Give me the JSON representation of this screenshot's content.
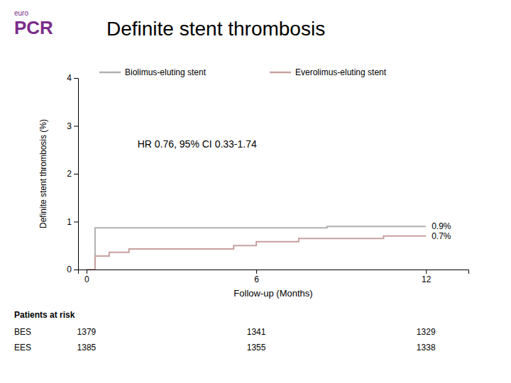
{
  "chart_data": {
    "type": "line",
    "title": "Definite stent thrombosis",
    "x_label": "Follow-up (Months)",
    "y_label": "Definite stent thrombosis (%)",
    "xlim": [
      -0.3,
      13.5
    ],
    "xticks": [
      0,
      6,
      12
    ],
    "ylim": [
      0,
      4
    ],
    "yticks": [
      0,
      1,
      2,
      3,
      4
    ],
    "grid": false,
    "legend": "top",
    "series": [
      {
        "name": "Biolimus-eluting stent",
        "color": "#b0b0b0",
        "x": [
          0,
          0.3,
          0.3,
          1.2,
          1.2,
          2.0,
          2.0,
          8.5,
          8.5,
          12.0
        ],
        "values": [
          0.0,
          0.0,
          0.87,
          0.87,
          0.87,
          0.87,
          0.87,
          0.87,
          0.9,
          0.9
        ]
      },
      {
        "name": "Everolimus-eluting stent",
        "color": "#c8a0a0",
        "x": [
          0,
          0.3,
          0.3,
          0.8,
          0.8,
          1.5,
          1.5,
          5.2,
          5.2,
          6.0,
          6.0,
          7.5,
          7.5,
          10.5,
          10.5,
          12.0
        ],
        "values": [
          0.0,
          0.0,
          0.28,
          0.28,
          0.36,
          0.36,
          0.43,
          0.43,
          0.5,
          0.5,
          0.58,
          0.58,
          0.65,
          0.65,
          0.7,
          0.7
        ]
      }
    ],
    "annotations": [
      {
        "text": "HR 0.76, 95% CI 0.33-1.74",
        "x": 1.8,
        "y": 2.55
      },
      {
        "text": "0.9%",
        "x": 12.2,
        "y": 0.9
      },
      {
        "text": "0.7%",
        "x": 12.2,
        "y": 0.7
      }
    ],
    "risk_table": {
      "title": "Patients at risk",
      "x": [
        0,
        6,
        12
      ],
      "rows": [
        {
          "label": "BES",
          "values": [
            1379,
            1341,
            1329
          ]
        },
        {
          "label": "EES",
          "values": [
            1385,
            1355,
            1338
          ]
        }
      ]
    },
    "logo": {
      "text": [
        "euro",
        "PCR"
      ],
      "color": "#7b2d8b"
    }
  }
}
